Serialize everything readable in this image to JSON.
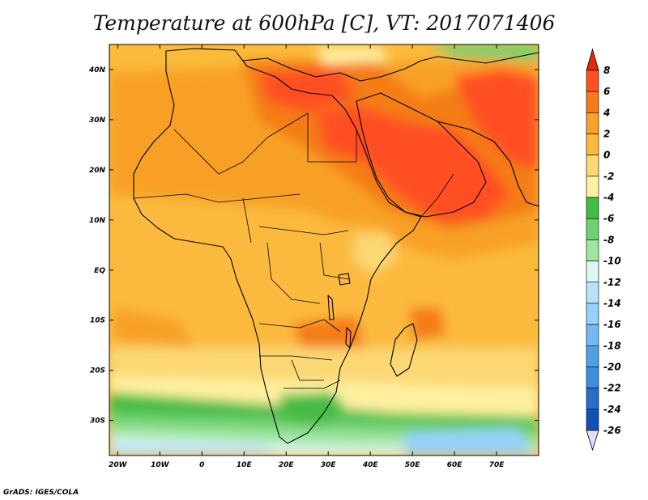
{
  "title": "Temperature at 600hPa [C], VT: 2017071406",
  "credit": "GrADS: IGES/COLA",
  "chart_data": {
    "type": "heatmap",
    "title": "Temperature at 600hPa [C], VT: 2017071406",
    "units": "C",
    "valid_time": "2017071406",
    "lon_range": [
      -22,
      80
    ],
    "lat_range": [
      -37,
      45
    ],
    "x_ticks": [
      "20W",
      "10W",
      "0",
      "10E",
      "20E",
      "30E",
      "40E",
      "50E",
      "60E",
      "70E"
    ],
    "x_tick_values": [
      -20,
      -10,
      0,
      10,
      20,
      30,
      40,
      50,
      60,
      70
    ],
    "y_ticks": [
      "40N",
      "30N",
      "20N",
      "10N",
      "EQ",
      "10S",
      "20S",
      "30S"
    ],
    "y_tick_values": [
      40,
      30,
      20,
      10,
      0,
      -10,
      -20,
      -30
    ],
    "colorbar": {
      "labels": [
        "8",
        "6",
        "4",
        "2",
        "0",
        "-2",
        "-4",
        "-6",
        "-8",
        "-10",
        "-12",
        "-14",
        "-16",
        "-18",
        "-20",
        "-22",
        "-24",
        "-26"
      ],
      "levels": [
        8,
        6,
        4,
        2,
        0,
        -2,
        -4,
        -6,
        -8,
        -10,
        -12,
        -14,
        -16,
        -18,
        -20,
        -22,
        -24,
        -26
      ],
      "colors": [
        "#ff5020",
        "#f47d19",
        "#f8a028",
        "#fbba3c",
        "#fbd874",
        "#fff0a0",
        "#44bb44",
        "#6fd16f",
        "#9fe6a0",
        "#ddf7f4",
        "#b8e2fa",
        "#96d2fa",
        "#78b8f0",
        "#50a0e8",
        "#3c8ce0",
        "#286ec8",
        "#1450b4",
        "#1e1478"
      ],
      "top_arrow_color": "#dd2a10",
      "bottom_arrow_color": "#e6dcff"
    }
  }
}
